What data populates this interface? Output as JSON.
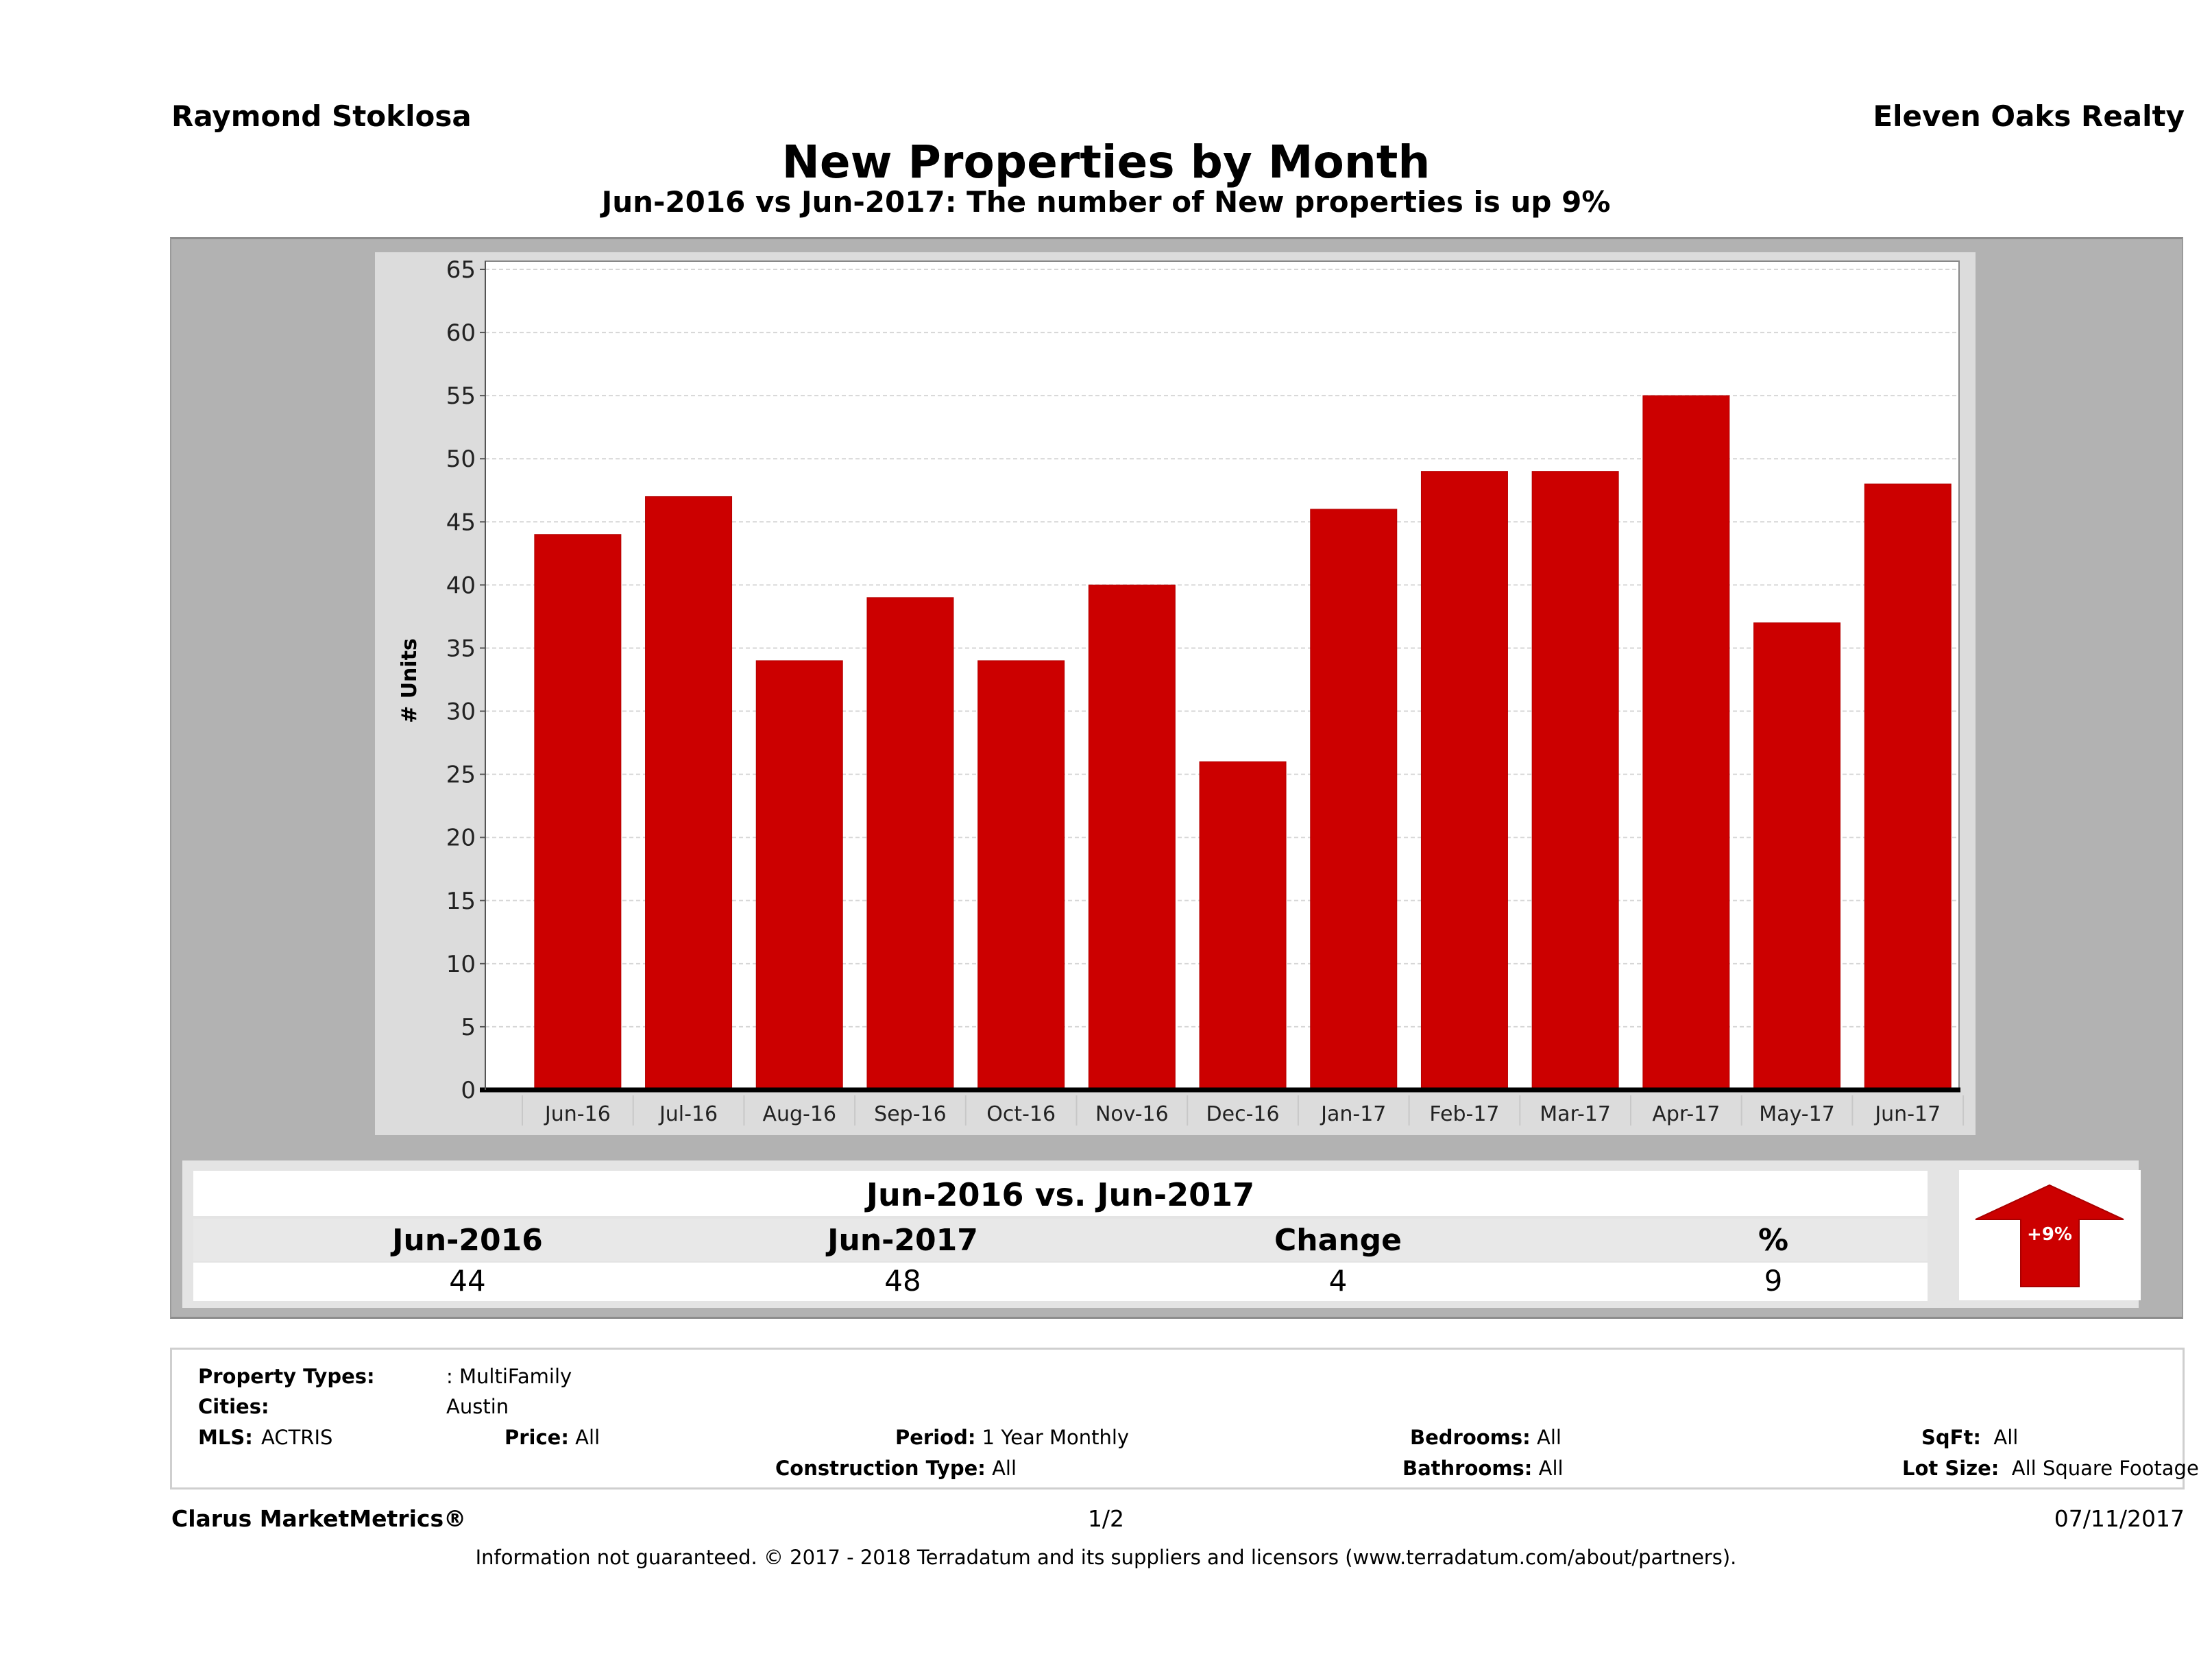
{
  "header": {
    "agent_name": "Raymond Stoklosa",
    "company_name": "Eleven Oaks Realty",
    "title": "New Properties by Month",
    "subtitle": "Jun-2016 vs Jun-2017: The number of New  properties is up 9%"
  },
  "colors": {
    "bar": "#cc0000",
    "panel": "#b2b2b2",
    "plot_background": "#ffffff",
    "chart_background": "#dcdcdc",
    "arrow": "#cc0000"
  },
  "chart_data": {
    "type": "bar",
    "title": "New Properties by Month",
    "subtitle": "Jun-2016 vs Jun-2017: The number of New  properties is up 9%",
    "xlabel": "",
    "ylabel": "# Units",
    "categories": [
      "Jun-16",
      "Jul-16",
      "Aug-16",
      "Sep-16",
      "Oct-16",
      "Nov-16",
      "Dec-16",
      "Jan-17",
      "Feb-17",
      "Mar-17",
      "Apr-17",
      "May-17",
      "Jun-17"
    ],
    "values": [
      44,
      47,
      34,
      39,
      34,
      40,
      26,
      46,
      49,
      49,
      55,
      37,
      48
    ],
    "ylim": [
      0,
      65
    ],
    "yticks": [
      0,
      5,
      10,
      15,
      20,
      25,
      30,
      35,
      40,
      45,
      50,
      55,
      60,
      65
    ],
    "grid": true,
    "legend": "none"
  },
  "summary": {
    "title": "Jun-2016 vs. Jun-2017",
    "headers": [
      "Jun-2016",
      "Jun-2017",
      "Change",
      "%"
    ],
    "values": [
      "44",
      "48",
      "4",
      "9"
    ],
    "badge": "+9%",
    "badge_direction": "up"
  },
  "filters": {
    "property_types_label": "Property Types:",
    "property_types_value": ": MultiFamily",
    "cities_label": "Cities:",
    "cities_value": "Austin",
    "mls_label": "MLS:",
    "mls_value": "ACTRIS",
    "price_label": "Price:",
    "price_value": "All",
    "period_label": "Period:",
    "period_value": "1 Year Monthly",
    "construction_label": "Construction Type:",
    "construction_value": "All",
    "bedrooms_label": "Bedrooms:",
    "bedrooms_value": "All",
    "bathrooms_label": "Bathrooms:",
    "bathrooms_value": "All",
    "sqft_label": "SqFt:",
    "sqft_value": "All",
    "lotsize_label": "Lot Size:",
    "lotsize_value": "All Square Footage"
  },
  "footer": {
    "brand": "Clarus MarketMetrics®",
    "page": "1/2",
    "date": "07/11/2017",
    "disclaimer": "Information not guaranteed. © 2017 - 2018 Terradatum and its suppliers and licensors (www.terradatum.com/about/partners)."
  }
}
